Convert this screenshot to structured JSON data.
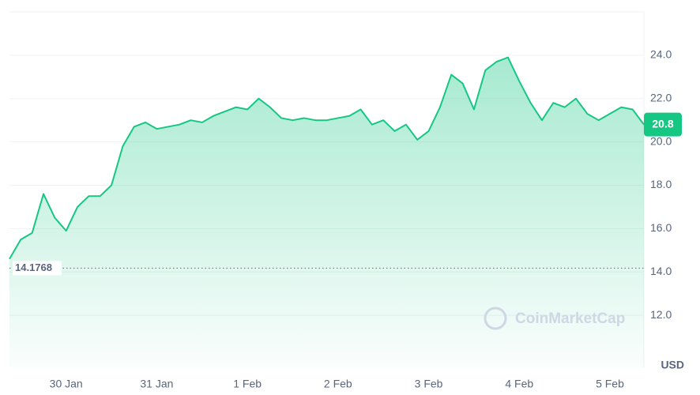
{
  "chart_data": {
    "type": "line",
    "values": [
      14.6,
      15.5,
      15.8,
      17.6,
      16.5,
      15.9,
      17.0,
      17.5,
      17.5,
      18.0,
      19.8,
      20.7,
      20.9,
      20.6,
      20.7,
      20.8,
      21.0,
      20.9,
      21.2,
      21.4,
      21.6,
      21.5,
      22.0,
      21.6,
      21.1,
      21.0,
      21.1,
      21.0,
      21.0,
      21.1,
      21.2,
      21.5,
      20.8,
      21.0,
      20.5,
      20.8,
      20.1,
      20.5,
      21.6,
      23.1,
      22.7,
      21.5,
      23.3,
      23.7,
      23.9,
      22.8,
      21.8,
      21.0,
      21.8,
      21.6,
      22.0,
      21.3,
      21.0,
      21.3,
      21.6,
      21.5,
      20.8
    ],
    "color": "#16c784",
    "xlim": [
      0,
      56
    ],
    "xticks": [
      {
        "value": 5,
        "label": "30 Jan"
      },
      {
        "value": 13,
        "label": "31 Jan"
      },
      {
        "value": 21,
        "label": "1 Feb"
      },
      {
        "value": 29,
        "label": "2 Feb"
      },
      {
        "value": 37,
        "label": "3 Feb"
      },
      {
        "value": 45,
        "label": "4 Feb"
      },
      {
        "value": 53,
        "label": "5 Feb"
      }
    ],
    "ylim": [
      9.6,
      26.0
    ],
    "yticks": [
      {
        "value": 12,
        "label": "12.0"
      },
      {
        "value": 14,
        "label": "14.0"
      },
      {
        "value": 16,
        "label": "16.0"
      },
      {
        "value": 18,
        "label": "18.0"
      },
      {
        "value": 20,
        "label": "20.0"
      },
      {
        "value": 22,
        "label": "22.0"
      },
      {
        "value": 24,
        "label": "24.0"
      }
    ],
    "grid": true,
    "reference_value": 14.1768,
    "current_price": 20.8,
    "currency": "USD",
    "watermark": "CoinMarketCap"
  }
}
